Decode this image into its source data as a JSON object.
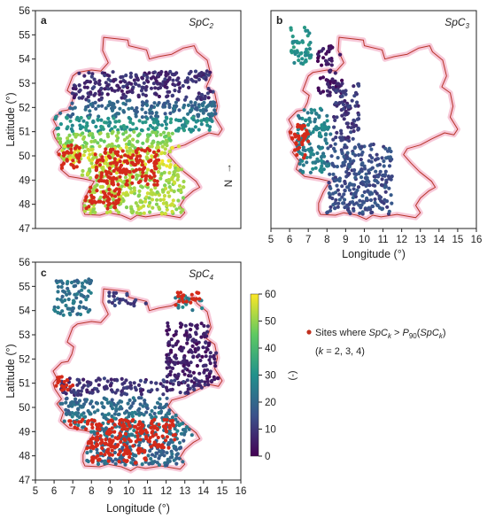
{
  "figure": {
    "panels": [
      {
        "letter": "a",
        "title_main": "SpC",
        "title_sub": "2",
        "title_suffix": ""
      },
      {
        "letter": "b",
        "title_main": "SpC",
        "title_sub": "3",
        "title_suffix": ""
      },
      {
        "letter": "c",
        "title_main": "SpC",
        "title_sub": "4",
        "title_suffix": ""
      }
    ],
    "north_label": "N",
    "north_arrow": "→",
    "axes": {
      "xlabel": "Longitude (°)",
      "ylabel": "Latitude (°)",
      "x_ticks": [
        "5",
        "6",
        "7",
        "8",
        "9",
        "10",
        "11",
        "12",
        "13",
        "14",
        "15",
        "16"
      ],
      "y_ticks": [
        "56",
        "55",
        "54",
        "53",
        "52",
        "51",
        "50",
        "49",
        "48",
        "47"
      ]
    },
    "colorbar": {
      "ticks": [
        "60",
        "50",
        "40",
        "30",
        "20",
        "10",
        "0"
      ],
      "unit": "(-)",
      "colors": [
        "#440154",
        "#3b528b",
        "#21918c",
        "#5ec962",
        "#fde725"
      ]
    },
    "legend": {
      "line1_a": "Sites where ",
      "line1_b": "SpC",
      "line1_c": "k",
      "line1_d": " > ",
      "line1_e": "P",
      "line1_f": "90",
      "line1_g": "(",
      "line1_h": "SpC",
      "line1_i": "k",
      "line1_j": ")",
      "line2_a": "(",
      "line2_b": "k",
      "line2_c": " = 2, 3, 4)",
      "marker_color": "#c0301e"
    },
    "colors": {
      "border": "#b8332a",
      "halo": "#f7c8d8",
      "exceed": "#d42a1a"
    }
  },
  "chart_data": [
    {
      "type": "scatter",
      "panel": "a",
      "title": "SpC2",
      "xlim": [
        5,
        16
      ],
      "ylim": [
        47,
        56
      ],
      "ylabel": "Latitude (°)",
      "clusters": [
        {
          "lon": [
            6.0,
            14.8
          ],
          "lat": [
            52.3,
            53.5
          ],
          "value": 8
        },
        {
          "lon": [
            6.0,
            14.8
          ],
          "lat": [
            51.6,
            52.3
          ],
          "value": 20
        },
        {
          "lon": [
            6.0,
            14.5
          ],
          "lat": [
            51.0,
            51.6
          ],
          "value": 30
        },
        {
          "lon": [
            6.2,
            12.5
          ],
          "lat": [
            50.3,
            51.0
          ],
          "value": 48
        },
        {
          "lon": [
            6.0,
            13.2
          ],
          "lat": [
            49.5,
            50.4
          ],
          "value": 55
        },
        {
          "lon": [
            7.5,
            13.0
          ],
          "lat": [
            47.6,
            49.5
          ],
          "value": 52
        }
      ],
      "exceedance": [
        {
          "lon": [
            5.9,
            7.4
          ],
          "lat": [
            49.4,
            50.5
          ]
        },
        {
          "lon": [
            8.2,
            11.6
          ],
          "lat": [
            48.8,
            50.3
          ]
        },
        {
          "lon": [
            7.5,
            9.5
          ],
          "lat": [
            47.8,
            48.7
          ]
        }
      ]
    },
    {
      "type": "scatter",
      "panel": "b",
      "title": "SpC3",
      "xlim": [
        5,
        16
      ],
      "ylim": [
        47,
        56
      ],
      "xlabel": "Longitude (°)",
      "clusters": [
        {
          "lon": [
            7.5,
            8.8
          ],
          "lat": [
            52.5,
            54.6
          ],
          "value": 4
        },
        {
          "lon": [
            8.3,
            9.7
          ],
          "lat": [
            50.6,
            53.0
          ],
          "value": 10
        },
        {
          "lon": [
            8.0,
            11.5
          ],
          "lat": [
            47.6,
            50.5
          ],
          "value": 14
        },
        {
          "lon": [
            6.4,
            8.2
          ],
          "lat": [
            49.3,
            52.0
          ],
          "value": 26
        },
        {
          "lon": [
            6.0,
            7.2
          ],
          "lat": [
            53.8,
            55.3
          ],
          "value": 30
        }
      ],
      "exceedance": [
        {
          "lon": [
            6.0,
            7.0
          ],
          "lat": [
            49.7,
            51.3
          ]
        }
      ]
    },
    {
      "type": "scatter",
      "panel": "c",
      "title": "SpC4",
      "xlim": [
        5,
        16
      ],
      "ylim": [
        47,
        56
      ],
      "xlabel": "Longitude (°)",
      "ylabel": "Latitude (°)",
      "clusters": [
        {
          "lon": [
            12.0,
            14.8
          ],
          "lat": [
            51.0,
            53.5
          ],
          "value": 5
        },
        {
          "lon": [
            6.2,
            14.5
          ],
          "lat": [
            50.5,
            51.2
          ],
          "value": 9
        },
        {
          "lon": [
            6.2,
            13.0
          ],
          "lat": [
            49.7,
            50.4
          ],
          "value": 20
        },
        {
          "lon": [
            6.0,
            13.5
          ],
          "lat": [
            48.8,
            49.8
          ],
          "value": 24
        },
        {
          "lon": [
            6.8,
            13.0
          ],
          "lat": [
            47.6,
            48.8
          ],
          "value": 20
        },
        {
          "lon": [
            6.0,
            8.0
          ],
          "lat": [
            53.8,
            55.3
          ],
          "value": 22
        },
        {
          "lon": [
            8.8,
            11.2
          ],
          "lat": [
            54.2,
            54.8
          ],
          "value": 12
        },
        {
          "lon": [
            12.5,
            14.0
          ],
          "lat": [
            54.0,
            54.6
          ],
          "value": 26
        }
      ],
      "exceedance": [
        {
          "lon": [
            6.5,
            12.5
          ],
          "lat": [
            48.3,
            49.5
          ]
        },
        {
          "lon": [
            8.0,
            11.0
          ],
          "lat": [
            47.7,
            48.3
          ]
        },
        {
          "lon": [
            12.5,
            13.8
          ],
          "lat": [
            54.2,
            54.8
          ]
        },
        {
          "lon": [
            5.9,
            7.0
          ],
          "lat": [
            50.7,
            51.3
          ]
        }
      ]
    }
  ]
}
